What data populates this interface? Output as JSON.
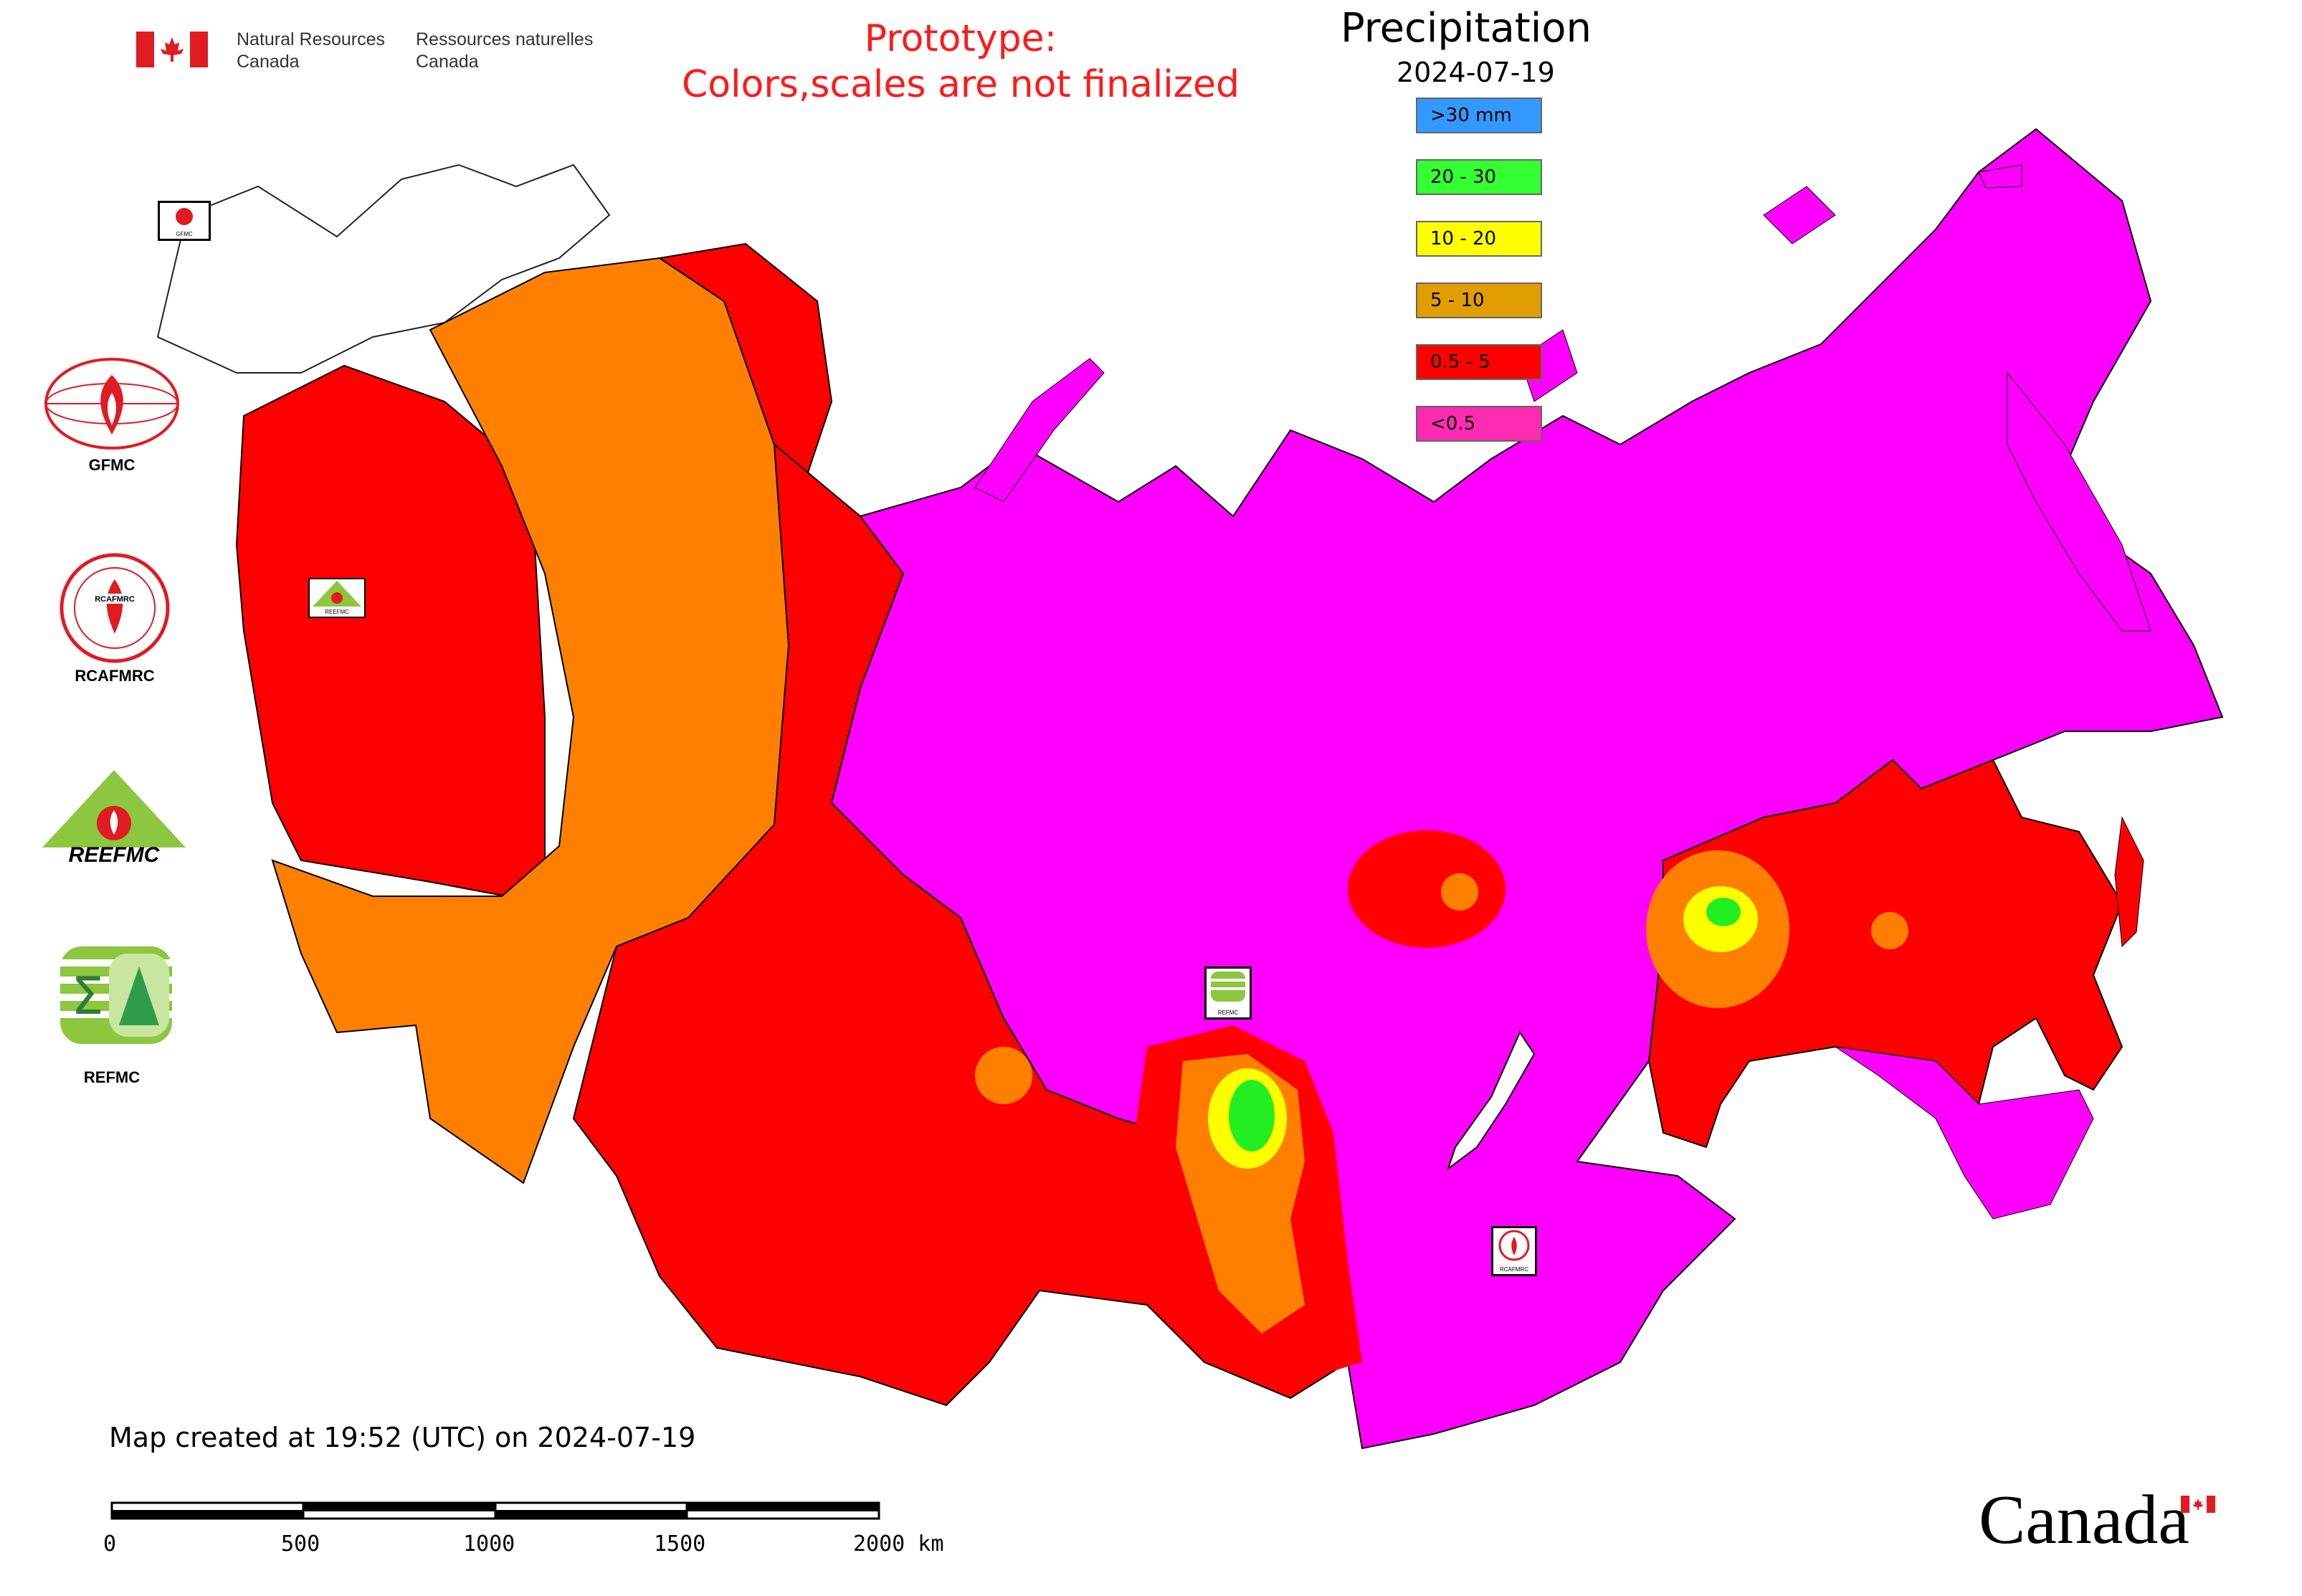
{
  "header": {
    "dept_en": "Natural Resources\nCanada",
    "dept_fr": "Ressources naturelles\nCanada",
    "prototype_line1": "Prototype:",
    "prototype_line2": "Colors,scales are not finalized"
  },
  "legend": {
    "title": "Precipitation",
    "date": "2024-07-19",
    "items": [
      {
        "label": ">30 mm",
        "color": "#3399ff"
      },
      {
        "label": "20 - 30",
        "color": "#33ff33"
      },
      {
        "label": "10 - 20",
        "color": "#ffff00"
      },
      {
        "label": "5 - 10",
        "color": "#e09e00"
      },
      {
        "label": "0.5 - 5",
        "color": "#ff0000"
      },
      {
        "label": "<0.5",
        "color": "#ff2bb0"
      }
    ]
  },
  "map_colors": {
    "very_low": "#ff00ff",
    "low": "#ff0000",
    "mid": "#ff8000",
    "high": "#ffff00",
    "very_high": "#22ee22"
  },
  "logos": [
    {
      "name": "GFMC",
      "caption": "GFMC"
    },
    {
      "name": "RCAFMRC",
      "caption": "RCAFMRC"
    },
    {
      "name": "REEFMC",
      "caption": "REEFMC"
    },
    {
      "name": "REFMC",
      "caption": "REFMC"
    }
  ],
  "badges": {
    "gfmc": "GFMC",
    "reefmc": "REEFMC",
    "refmc": "REFMC",
    "rcafmrc": "RCAFMRC"
  },
  "footer": {
    "created": "Map created at 19:52 (UTC) on 2024-07-19",
    "scale_labels": [
      "0",
      "500",
      "1000",
      "1500",
      "2000 km"
    ],
    "wordmark": "Canada"
  }
}
